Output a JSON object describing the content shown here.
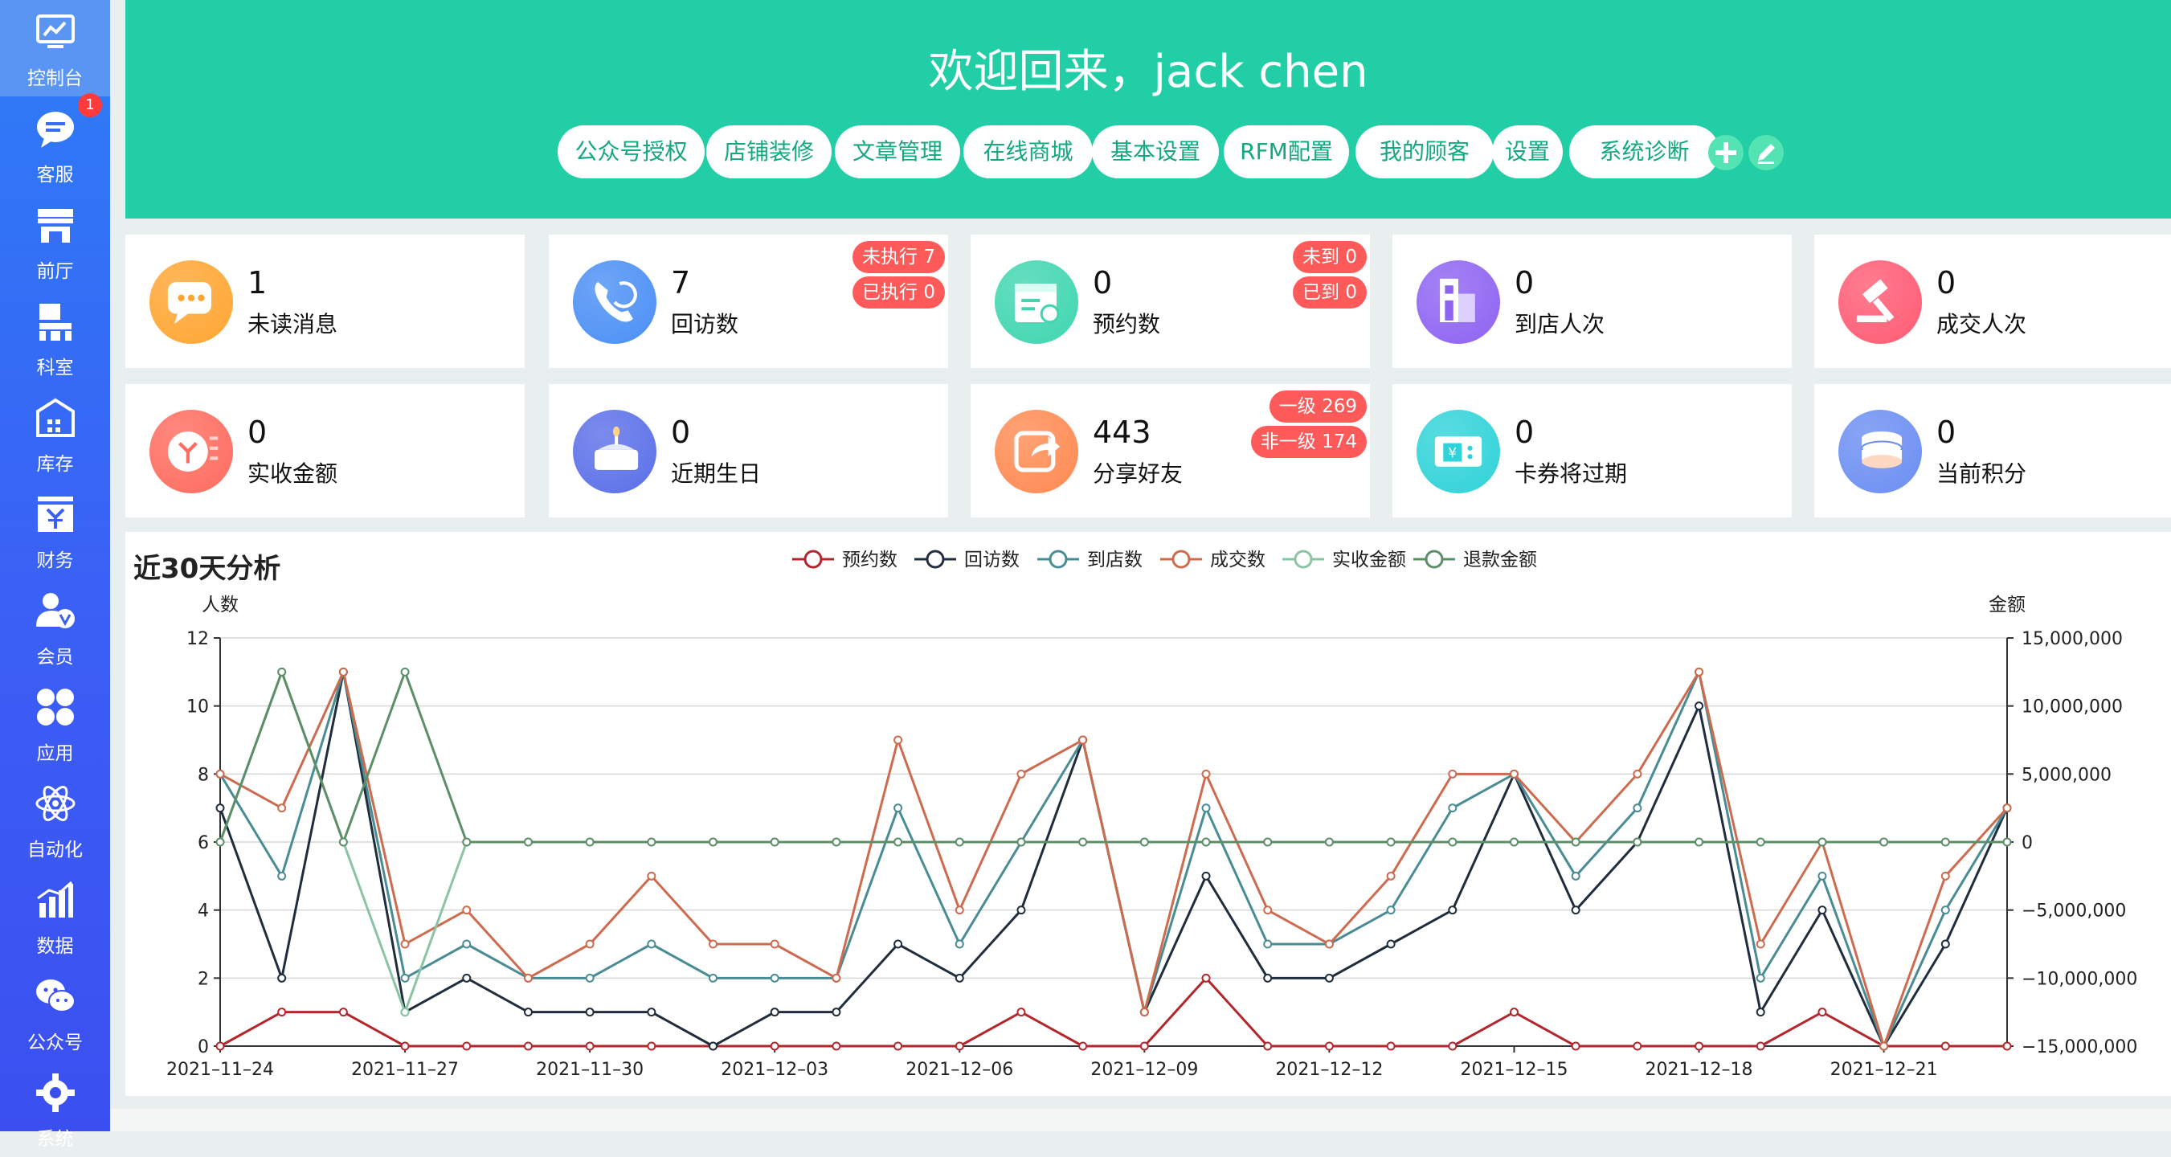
{
  "sidebar": {
    "items": [
      {
        "label": "控制台",
        "icon": "monitor-chart-icon"
      },
      {
        "label": "客服",
        "icon": "chat-bubble-icon",
        "badge": "1"
      },
      {
        "label": "前厅",
        "icon": "storefront-icon"
      },
      {
        "label": "科室",
        "icon": "department-icon"
      },
      {
        "label": "库存",
        "icon": "warehouse-icon"
      },
      {
        "label": "财务",
        "icon": "yen-icon"
      },
      {
        "label": "会员",
        "icon": "member-icon"
      },
      {
        "label": "应用",
        "icon": "apps-grid-icon"
      },
      {
        "label": "自动化",
        "icon": "atom-icon"
      },
      {
        "label": "数据",
        "icon": "bar-chart-icon"
      },
      {
        "label": "公众号",
        "icon": "wechat-icon"
      },
      {
        "label": "系统",
        "icon": "gear-icon"
      }
    ]
  },
  "header": {
    "welcome": "欢迎回来，jack chen",
    "nav": [
      "公众号授权",
      "店铺装修",
      "文章管理",
      "在线商城",
      "基本设置",
      "RFM配置",
      "我的顾客",
      "设置",
      "系统诊断"
    ],
    "add_icon": "plus-circle-icon",
    "edit_icon": "edit-pencil-icon"
  },
  "cards": [
    {
      "value": "1",
      "label": "未读消息",
      "icon": "message-icon",
      "color": "#ffa531"
    },
    {
      "value": "7",
      "label": "回访数",
      "icon": "phone-callback-icon",
      "color": "#4a8ff5",
      "tags": [
        "未执行 7",
        "已执行 0"
      ]
    },
    {
      "value": "0",
      "label": "预约数",
      "icon": "calendar-check-icon",
      "color": "#3fd6b0",
      "tags": [
        "未到 0",
        "已到 0"
      ]
    },
    {
      "value": "0",
      "label": "到店人次",
      "icon": "store-building-icon",
      "color": "#8e63f2"
    },
    {
      "value": "0",
      "label": "成交人次",
      "icon": "auction-hammer-icon",
      "color": "#ff5b73"
    },
    {
      "value": "0",
      "label": "实收金额",
      "icon": "yen-coin-icon",
      "color": "#ff6b5e"
    },
    {
      "value": "0",
      "label": "近期生日",
      "icon": "birthday-cake-icon",
      "color": "#5a6fe8"
    },
    {
      "value": "443",
      "label": "分享好友",
      "icon": "share-arrow-icon",
      "color": "#ff8a52",
      "tags": [
        "一级 269",
        "非一级 174"
      ]
    },
    {
      "value": "0",
      "label": "卡券将过期",
      "icon": "coupon-icon",
      "color": "#2fd3d8"
    },
    {
      "value": "0",
      "label": "当前积分",
      "icon": "coin-stack-icon",
      "color": "#6b8ef2"
    }
  ],
  "chart_data": {
    "type": "line",
    "title": "近30天分析",
    "ylabel": "人数",
    "y2label": "金额",
    "ylim": [
      0,
      12
    ],
    "y2lim": [
      -15000000,
      15000000
    ],
    "yticks": [
      "0",
      "2",
      "4",
      "6",
      "8",
      "10",
      "12"
    ],
    "y2ticks": [
      "−15,000,000",
      "−10,000,000",
      "−5,000,000",
      "0",
      "5,000,000",
      "10,000,000",
      "15,000,000"
    ],
    "x": [
      "2021-11-24",
      "2021-11-25",
      "2021-11-26",
      "2021-11-27",
      "2021-11-28",
      "2021-11-29",
      "2021-11-30",
      "2021-12-01",
      "2021-12-02",
      "2021-12-03",
      "2021-12-04",
      "2021-12-05",
      "2021-12-06",
      "2021-12-07",
      "2021-12-08",
      "2021-12-09",
      "2021-12-10",
      "2021-12-11",
      "2021-12-12",
      "2021-12-13",
      "2021-12-14",
      "2021-12-15",
      "2021-12-16",
      "2021-12-17",
      "2021-12-18",
      "2021-12-19",
      "2021-12-20",
      "2021-12-21",
      "2021-12-22",
      "2021-12-23"
    ],
    "xtick_labels": [
      "2021–11–24",
      "2021–11–27",
      "2021–11–30",
      "2021–12–03",
      "2021–12–06",
      "2021–12–09",
      "2021–12–12",
      "2021–12–15",
      "2021–12–18",
      "2021–12–21"
    ],
    "legend_position": "top-center",
    "grid": true,
    "series": [
      {
        "name": "预约数",
        "color": "#b3262c",
        "axis": "left",
        "values": [
          0,
          1,
          1,
          0,
          0,
          0,
          0,
          0,
          0,
          0,
          0,
          0,
          0,
          1,
          0,
          0,
          2,
          0,
          0,
          0,
          0,
          1,
          0,
          0,
          0,
          0,
          1,
          0,
          0,
          0
        ]
      },
      {
        "name": "回访数",
        "color": "#1f2d3d",
        "axis": "left",
        "values": [
          7,
          2,
          11,
          1,
          2,
          1,
          1,
          1,
          0,
          1,
          1,
          3,
          2,
          4,
          9,
          1,
          5,
          2,
          2,
          3,
          4,
          8,
          4,
          6,
          10,
          1,
          4,
          0,
          3,
          7
        ]
      },
      {
        "name": "到店数",
        "color": "#4a8c94",
        "axis": "left",
        "values": [
          8,
          5,
          11,
          2,
          3,
          2,
          2,
          3,
          2,
          2,
          2,
          7,
          3,
          6,
          9,
          1,
          7,
          3,
          3,
          4,
          7,
          8,
          5,
          7,
          11,
          2,
          5,
          0,
          4,
          7
        ]
      },
      {
        "name": "成交数",
        "color": "#cd6b4f",
        "axis": "left",
        "values": [
          8,
          7,
          11,
          3,
          4,
          2,
          3,
          5,
          3,
          3,
          2,
          9,
          4,
          8,
          9,
          1,
          8,
          4,
          3,
          5,
          8,
          8,
          6,
          8,
          11,
          3,
          6,
          0,
          5,
          7
        ]
      },
      {
        "name": "实收金额",
        "color": "#8bc4a4",
        "axis": "right",
        "values": [
          0,
          12500000,
          0,
          -12500000,
          0,
          0,
          0,
          0,
          0,
          0,
          0,
          0,
          0,
          0,
          0,
          0,
          0,
          0,
          0,
          0,
          0,
          0,
          0,
          0,
          0,
          0,
          0,
          0,
          0,
          0
        ]
      },
      {
        "name": "退款金额",
        "color": "#5c8f68",
        "axis": "right",
        "values": [
          0,
          12500000,
          0,
          12500000,
          0,
          0,
          0,
          0,
          0,
          0,
          0,
          0,
          0,
          0,
          0,
          0,
          0,
          0,
          0,
          0,
          0,
          0,
          0,
          0,
          0,
          0,
          0,
          0,
          0,
          0
        ]
      }
    ]
  }
}
